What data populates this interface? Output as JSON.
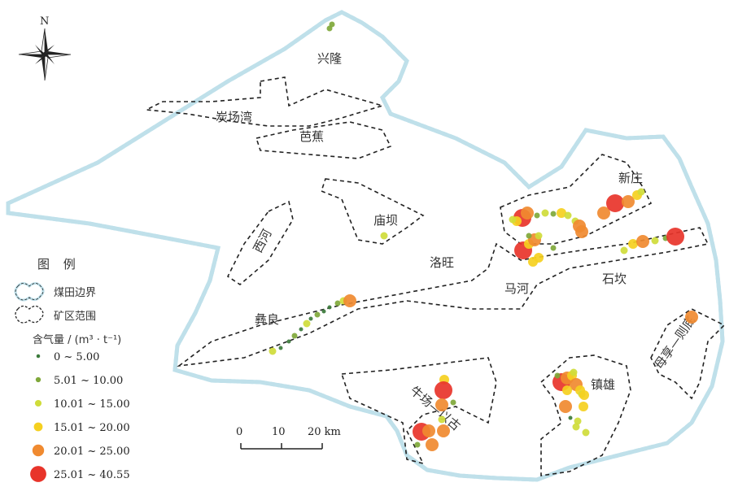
{
  "compass": {
    "north_label": "N"
  },
  "regions": {
    "xinglong": "兴隆",
    "tanchangwan": "炭场湾",
    "bajiao": "芭蕉",
    "xinzhuang": "新庄",
    "miaoba": "庙坝",
    "xihe": "西河",
    "luowang": "洛旺",
    "mahe": "马河",
    "shikan": "石坎",
    "yiliang": "彝良",
    "zhenxiong": "镇雄",
    "niuchang_yigu": "牛场—以古",
    "muxiang_zedi": "母享—则底"
  },
  "legend": {
    "title": "图  例",
    "boundary": "煤田边界",
    "mine_area": "矿区范围",
    "gas_title": "含气量 / (m³ · t⁻¹)",
    "classes": [
      {
        "label": "0 ~ 5.00",
        "color": "#3b7a3b"
      },
      {
        "label": "5.01 ~ 10.00",
        "color": "#7fa83a"
      },
      {
        "label": "10.01 ~ 15.00",
        "color": "#cfdc3a"
      },
      {
        "label": "15.01 ~ 20.00",
        "color": "#f5d020"
      },
      {
        "label": "20.01 ~ 25.00",
        "color": "#f08a30"
      },
      {
        "label": "25.01 ~ 40.55",
        "color": "#e8342a"
      }
    ]
  },
  "scale": {
    "ticks": [
      "0",
      "10",
      "20 km"
    ]
  }
}
